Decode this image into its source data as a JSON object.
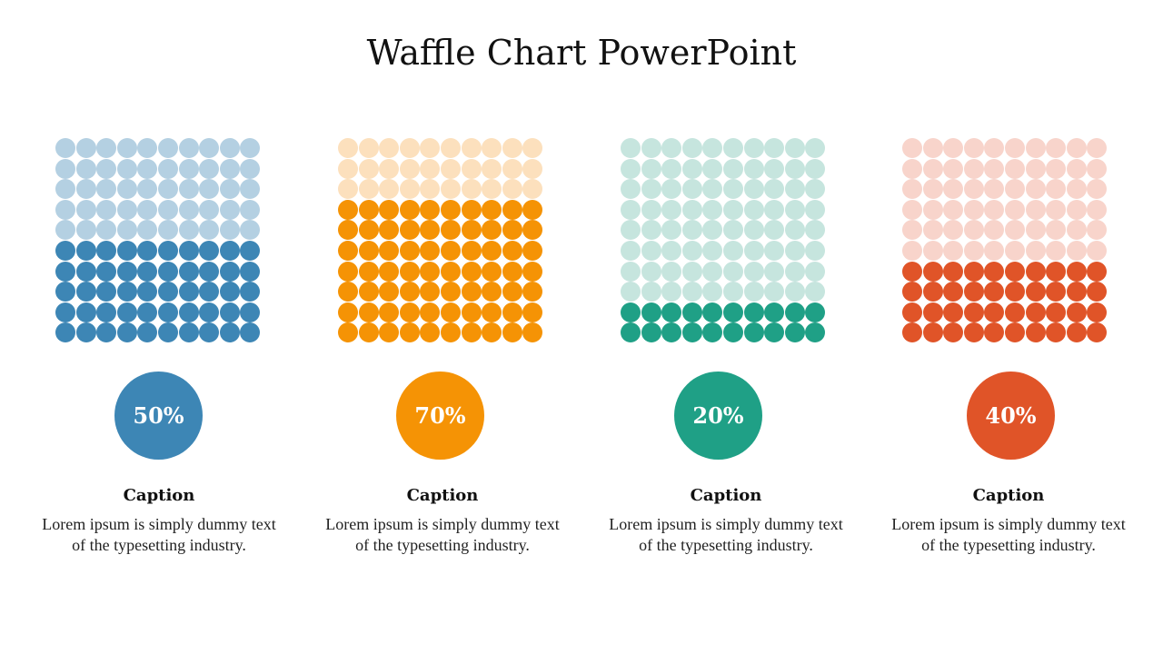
{
  "title": "Waffle Chart PowerPoint",
  "chart_data": [
    {
      "type": "waffle",
      "grid": [
        10,
        10
      ],
      "value": 50,
      "label": "50%",
      "colors": {
        "filled": "#3d86b5",
        "empty": "#b4d0e2"
      },
      "caption_title": "Caption",
      "caption_text": "Lorem ipsum is simply dummy text of the typesetting industry."
    },
    {
      "type": "waffle",
      "grid": [
        10,
        10
      ],
      "value": 70,
      "label": "70%",
      "colors": {
        "filled": "#f59305",
        "empty": "#fce0bd"
      },
      "caption_title": "Caption",
      "caption_text": "Lorem ipsum is simply dummy text of the typesetting industry."
    },
    {
      "type": "waffle",
      "grid": [
        10,
        10
      ],
      "value": 20,
      "label": "20%",
      "colors": {
        "filled": "#1fa086",
        "empty": "#c6e5de"
      },
      "caption_title": "Caption",
      "caption_text": "Lorem ipsum is simply dummy text of the typesetting industry."
    },
    {
      "type": "waffle",
      "grid": [
        10,
        10
      ],
      "value": 40,
      "label": "40%",
      "colors": {
        "filled": "#e05428",
        "empty": "#f8d4cb"
      },
      "caption_title": "Caption",
      "caption_text": "Lorem ipsum is simply dummy text of the typesetting industry."
    }
  ]
}
